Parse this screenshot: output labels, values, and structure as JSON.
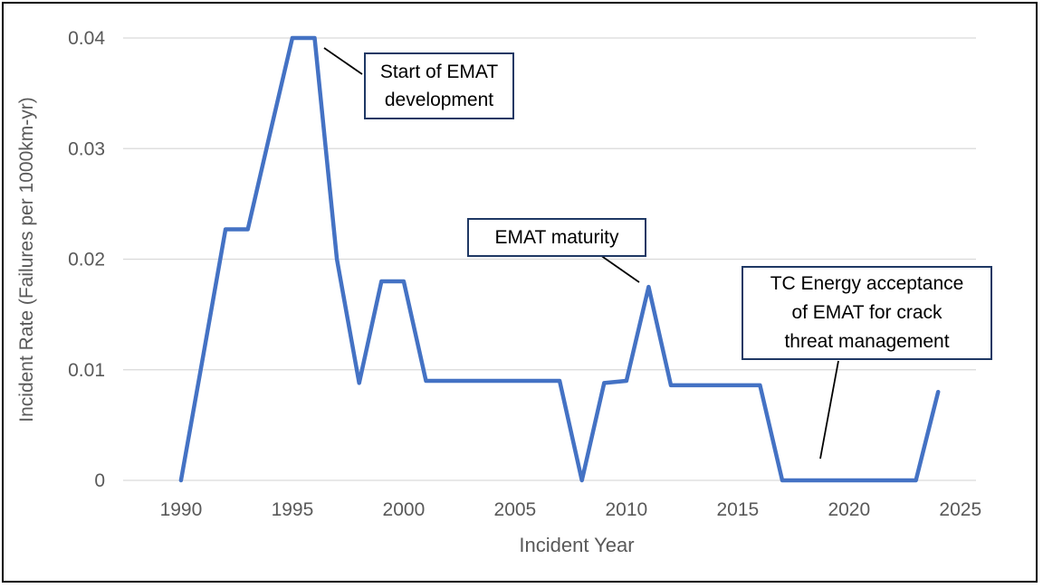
{
  "chart_data": {
    "type": "line",
    "title": "",
    "xlabel": "Incident Year",
    "ylabel": "Incident Rate (Failures per 1000km-yr)",
    "series": [
      {
        "name": "Incident Rate",
        "x": [
          1990,
          1991,
          1992,
          1993,
          1994,
          1995,
          1996,
          1997,
          1998,
          1999,
          2000,
          2001,
          2002,
          2003,
          2004,
          2005,
          2006,
          2007,
          2008,
          2009,
          2010,
          2011,
          2012,
          2013,
          2014,
          2015,
          2016,
          2017,
          2018,
          2019,
          2020,
          2021,
          2022,
          2023,
          2024
        ],
        "values": [
          0,
          0.0113,
          0.0227,
          0.0227,
          0.0314,
          0.04,
          0.04,
          0.02,
          0.0088,
          0.018,
          0.018,
          0.009,
          0.009,
          0.009,
          0.009,
          0.009,
          0.009,
          0.009,
          0,
          0.0088,
          0.009,
          0.0175,
          0.0086,
          0.0086,
          0.0086,
          0.0086,
          0.0086,
          0,
          0,
          0,
          0,
          0,
          0,
          0,
          0.008
        ]
      }
    ],
    "xticks": [
      1990,
      1995,
      2000,
      2005,
      2010,
      2015,
      2020,
      2025
    ],
    "xtick_labels": [
      "1990",
      "1995",
      "2000",
      "2005",
      "2010",
      "2015",
      "2020",
      "2025"
    ],
    "yticks": [
      0,
      0.01,
      0.02,
      0.03,
      0.04
    ],
    "ytick_labels": [
      "0",
      "0.01",
      "0.02",
      "0.03",
      "0.04"
    ],
    "xlim": [
      1987.4,
      2025.7
    ],
    "ylim": [
      0,
      0.04
    ],
    "grid": "horizontal",
    "legend": "none",
    "annotations": [
      {
        "lines": [
          "Start of EMAT",
          "development"
        ],
        "target_year": 1996,
        "target_value": 0.04
      },
      {
        "lines": [
          "EMAT maturity"
        ],
        "target_year": 2011,
        "target_value": 0.0175
      },
      {
        "lines": [
          "TC Energy acceptance",
          "of EMAT for crack",
          "threat management"
        ],
        "target_year": 2018.7,
        "target_value": 0.002
      }
    ]
  },
  "colors": {
    "line": "#4472C4",
    "grid": "#D9D9D9",
    "axis_text": "#595959",
    "annotation_border": "#1F3864",
    "annotation_text": "#000000",
    "frame": "#000000",
    "background": "#FFFFFF"
  }
}
